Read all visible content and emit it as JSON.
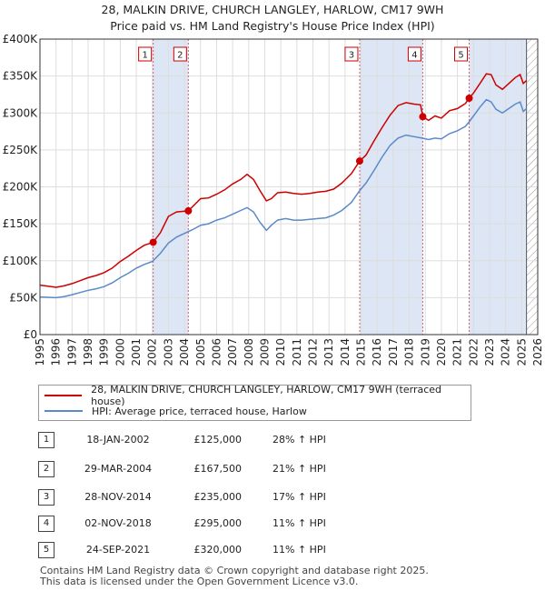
{
  "title_line1": "28, MALKIN DRIVE, CHURCH LANGLEY, HARLOW, CM17 9WH",
  "title_line2": "Price paid vs. HM Land Registry's House Price Index (HPI)",
  "colors": {
    "property": "#cc0000",
    "hpi": "#5b8ac8",
    "shade": "#dde6f5",
    "marker_line": "#d06070",
    "hatch": "#999999",
    "grid": "#dddddd"
  },
  "chart_data": {
    "type": "line",
    "title": "28, MALKIN DRIVE, CHURCH LANGLEY, HARLOW, CM17 9WH",
    "subtitle": "Price paid vs. HM Land Registry's House Price Index (HPI)",
    "xlim": [
      1995,
      2026
    ],
    "ylim": [
      0,
      400000
    ],
    "y_ticks": [
      0,
      50000,
      100000,
      150000,
      200000,
      250000,
      300000,
      350000,
      400000
    ],
    "y_tick_labels": [
      "£0",
      "£50K",
      "£100K",
      "£150K",
      "£200K",
      "£250K",
      "£300K",
      "£350K",
      "£400K"
    ],
    "x_ticks": [
      "1995",
      "1996",
      "1997",
      "1998",
      "1999",
      "2000",
      "2001",
      "2002",
      "2003",
      "2004",
      "2005",
      "2006",
      "2007",
      "2008",
      "2009",
      "2010",
      "2011",
      "2012",
      "2013",
      "2014",
      "2015",
      "2016",
      "2017",
      "2018",
      "2019",
      "2020",
      "2021",
      "2022",
      "2023",
      "2024",
      "2025",
      "2026"
    ],
    "data_end": 2025.3,
    "series": [
      {
        "name": "28, MALKIN DRIVE, CHURCH LANGLEY, HARLOW, CM17 9WH (terraced house)",
        "points": [
          [
            1995,
            67000
          ],
          [
            1995.5,
            65500
          ],
          [
            1996,
            64000
          ],
          [
            1996.5,
            66000
          ],
          [
            1997,
            69000
          ],
          [
            1997.5,
            73000
          ],
          [
            1998,
            77000
          ],
          [
            1998.5,
            80000
          ],
          [
            1999,
            84000
          ],
          [
            1999.5,
            90000
          ],
          [
            2000,
            99000
          ],
          [
            2000.5,
            106000
          ],
          [
            2001,
            114000
          ],
          [
            2001.5,
            121000
          ],
          [
            2002.05,
            125000
          ],
          [
            2002.5,
            138000
          ],
          [
            2003,
            160000
          ],
          [
            2003.5,
            166000
          ],
          [
            2004.24,
            167500
          ],
          [
            2004.5,
            173000
          ],
          [
            2005,
            184000
          ],
          [
            2005.5,
            185000
          ],
          [
            2006,
            190000
          ],
          [
            2006.5,
            196000
          ],
          [
            2007,
            204000
          ],
          [
            2007.5,
            210000
          ],
          [
            2007.9,
            217000
          ],
          [
            2008.3,
            210000
          ],
          [
            2008.7,
            195000
          ],
          [
            2009.1,
            181000
          ],
          [
            2009.4,
            184000
          ],
          [
            2009.8,
            192000
          ],
          [
            2010.3,
            193000
          ],
          [
            2010.8,
            191000
          ],
          [
            2011.3,
            190000
          ],
          [
            2011.8,
            191000
          ],
          [
            2012.3,
            193000
          ],
          [
            2012.8,
            194000
          ],
          [
            2013.3,
            197000
          ],
          [
            2013.8,
            205000
          ],
          [
            2014.4,
            218000
          ],
          [
            2014.91,
            235000
          ],
          [
            2015.3,
            243000
          ],
          [
            2015.8,
            262000
          ],
          [
            2016.3,
            280000
          ],
          [
            2016.8,
            297000
          ],
          [
            2017.3,
            310000
          ],
          [
            2017.8,
            314000
          ],
          [
            2018.3,
            312000
          ],
          [
            2018.7,
            311000
          ],
          [
            2018.84,
            295000
          ],
          [
            2019.2,
            290000
          ],
          [
            2019.6,
            296000
          ],
          [
            2020,
            293000
          ],
          [
            2020.5,
            303000
          ],
          [
            2021,
            306000
          ],
          [
            2021.5,
            313000
          ],
          [
            2021.73,
            320000
          ],
          [
            2022,
            327000
          ],
          [
            2022.4,
            340000
          ],
          [
            2022.8,
            353000
          ],
          [
            2023.1,
            352000
          ],
          [
            2023.4,
            338000
          ],
          [
            2023.8,
            332000
          ],
          [
            2024.2,
            340000
          ],
          [
            2024.6,
            348000
          ],
          [
            2024.9,
            352000
          ],
          [
            2025.1,
            340000
          ],
          [
            2025.3,
            344000
          ]
        ]
      },
      {
        "name": "HPI: Average price, terraced house, Harlow",
        "points": [
          [
            1995,
            51000
          ],
          [
            1995.5,
            50500
          ],
          [
            1996,
            50000
          ],
          [
            1996.5,
            51500
          ],
          [
            1997,
            54000
          ],
          [
            1997.5,
            57000
          ],
          [
            1998,
            60000
          ],
          [
            1998.5,
            62000
          ],
          [
            1999,
            65000
          ],
          [
            1999.5,
            70000
          ],
          [
            2000,
            77000
          ],
          [
            2000.5,
            83000
          ],
          [
            2001,
            90000
          ],
          [
            2001.5,
            95000
          ],
          [
            2002,
            99000
          ],
          [
            2002.5,
            110000
          ],
          [
            2003,
            124000
          ],
          [
            2003.5,
            132000
          ],
          [
            2004,
            137000
          ],
          [
            2004.5,
            142000
          ],
          [
            2005,
            148000
          ],
          [
            2005.5,
            150000
          ],
          [
            2006,
            155000
          ],
          [
            2006.5,
            158000
          ],
          [
            2007,
            163000
          ],
          [
            2007.5,
            168000
          ],
          [
            2007.9,
            172000
          ],
          [
            2008.3,
            166000
          ],
          [
            2008.7,
            152000
          ],
          [
            2009.1,
            141000
          ],
          [
            2009.4,
            148000
          ],
          [
            2009.8,
            155000
          ],
          [
            2010.3,
            157000
          ],
          [
            2010.8,
            155000
          ],
          [
            2011.3,
            155000
          ],
          [
            2011.8,
            156000
          ],
          [
            2012.3,
            157000
          ],
          [
            2012.8,
            158000
          ],
          [
            2013.3,
            162000
          ],
          [
            2013.8,
            168000
          ],
          [
            2014.4,
            179000
          ],
          [
            2014.91,
            195000
          ],
          [
            2015.3,
            205000
          ],
          [
            2015.8,
            222000
          ],
          [
            2016.3,
            240000
          ],
          [
            2016.8,
            256000
          ],
          [
            2017.3,
            266000
          ],
          [
            2017.8,
            270000
          ],
          [
            2018.3,
            268000
          ],
          [
            2018.8,
            266000
          ],
          [
            2019.2,
            264000
          ],
          [
            2019.6,
            266000
          ],
          [
            2020,
            265000
          ],
          [
            2020.5,
            272000
          ],
          [
            2021,
            276000
          ],
          [
            2021.5,
            282000
          ],
          [
            2021.73,
            288000
          ],
          [
            2022,
            296000
          ],
          [
            2022.4,
            308000
          ],
          [
            2022.8,
            318000
          ],
          [
            2023.1,
            315000
          ],
          [
            2023.4,
            305000
          ],
          [
            2023.8,
            300000
          ],
          [
            2024.2,
            306000
          ],
          [
            2024.6,
            312000
          ],
          [
            2024.9,
            315000
          ],
          [
            2025.1,
            302000
          ],
          [
            2025.3,
            306000
          ]
        ]
      }
    ],
    "sales": [
      {
        "n": "1",
        "x": 2002.05,
        "y": 125000
      },
      {
        "n": "2",
        "x": 2004.24,
        "y": 167500
      },
      {
        "n": "3",
        "x": 2014.91,
        "y": 235000
      },
      {
        "n": "4",
        "x": 2018.84,
        "y": 295000
      },
      {
        "n": "5",
        "x": 2021.73,
        "y": 320000
      }
    ]
  },
  "legend": {
    "property_label": "28, MALKIN DRIVE, CHURCH LANGLEY, HARLOW, CM17 9WH (terraced house)",
    "hpi_label": "HPI: Average price, terraced house, Harlow"
  },
  "transactions": [
    {
      "num": "1",
      "date": "18-JAN-2002",
      "price": "£125,000",
      "hpi": "28% ↑ HPI"
    },
    {
      "num": "2",
      "date": "29-MAR-2004",
      "price": "£167,500",
      "hpi": "21% ↑ HPI"
    },
    {
      "num": "3",
      "date": "28-NOV-2014",
      "price": "£235,000",
      "hpi": "17% ↑ HPI"
    },
    {
      "num": "4",
      "date": "02-NOV-2018",
      "price": "£295,000",
      "hpi": "11% ↑ HPI"
    },
    {
      "num": "5",
      "date": "24-SEP-2021",
      "price": "£320,000",
      "hpi": "11% ↑ HPI"
    }
  ],
  "footer": {
    "line1": "Contains HM Land Registry data © Crown copyright and database right 2025.",
    "line2": "This data is licensed under the Open Government Licence v3.0."
  }
}
